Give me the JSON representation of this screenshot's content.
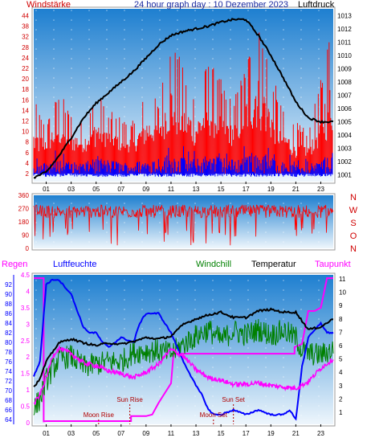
{
  "header": {
    "title": "24 hour graph day : 10 Dezember 2023",
    "left_label": "Windstärke",
    "right_label": "Luftdruck"
  },
  "colors": {
    "wind": "#ff0000",
    "gust": "#0000ff",
    "pressure": "#000000",
    "direction": "#ff0000",
    "rain": "#ff00ff",
    "humidity": "#0000ff",
    "windchill": "#008000",
    "temperature": "#000000",
    "dewpoint": "#ff00ff",
    "sky_top": "#1e7fd0",
    "sky_bottom": "#eef6fc"
  },
  "chart_data": [
    {
      "type": "line",
      "panel": "wind-pressure",
      "x_ticks": [
        "01",
        "03",
        "05",
        "07",
        "09",
        "11",
        "13",
        "15",
        "17",
        "19",
        "21",
        "23"
      ],
      "left_axis": {
        "label": "Windstärke",
        "ticks": [
          2,
          4,
          6,
          8,
          10,
          12,
          14,
          16,
          18,
          20,
          22,
          24,
          28,
          32,
          38,
          44
        ],
        "ylim": [
          2,
          44
        ]
      },
      "right_axis": {
        "label": "Luftdruck",
        "ticks": [
          1001,
          1002,
          1003,
          1004,
          1005,
          1006,
          1007,
          1008,
          1009,
          1010,
          1011,
          1012,
          1013
        ],
        "ylim": [
          1000.5,
          1013.5
        ]
      },
      "series": [
        {
          "name": "Luftdruck",
          "axis": "right",
          "x": [
            0,
            1,
            2,
            3,
            4,
            5,
            6,
            7,
            8,
            9,
            10,
            11,
            12,
            13,
            14,
            15,
            16,
            17,
            18,
            19,
            20,
            21,
            22,
            23,
            24
          ],
          "y": [
            1000.8,
            1001.2,
            1002.4,
            1003.8,
            1005.3,
            1006.4,
            1007.2,
            1008.0,
            1008.8,
            1009.8,
            1010.8,
            1011.5,
            1011.8,
            1012.0,
            1012.2,
            1012.5,
            1012.7,
            1012.7,
            1011.5,
            1010.0,
            1008.3,
            1006.5,
            1005.3,
            1005.0,
            1005.0
          ]
        }
      ],
      "wind_level_by_hour": [
        5,
        6,
        7,
        6,
        6,
        7,
        7,
        6,
        6,
        7,
        8,
        9,
        8,
        7,
        9,
        8,
        7,
        9,
        10,
        8,
        6,
        5,
        5,
        7,
        9
      ],
      "gust_level_by_hour": [
        16,
        12,
        18,
        14,
        12,
        18,
        14,
        13,
        12,
        18,
        16,
        30,
        22,
        18,
        24,
        20,
        16,
        24,
        38,
        22,
        14,
        12,
        10,
        20,
        40
      ]
    },
    {
      "type": "line",
      "panel": "wind-direction",
      "y_ticks": [
        0,
        90,
        180,
        270,
        360
      ],
      "direction_labels": [
        "N",
        "W",
        "S",
        "O",
        "N"
      ],
      "ylim": [
        0,
        360
      ],
      "typical_direction": 250
    },
    {
      "type": "line",
      "panel": "temperature-humidity-rain",
      "x_ticks": [
        "01",
        "03",
        "05",
        "07",
        "09",
        "11",
        "13",
        "15",
        "17",
        "19",
        "21",
        "23"
      ],
      "legend": [
        "Regen",
        "Luftfeuchte",
        "Windchill",
        "Temperatur",
        "Taupunkt"
      ],
      "rain_axis": {
        "ticks": [
          "0",
          "0.5",
          "1",
          "1.5",
          "2",
          "2.5",
          "3",
          "3.5",
          "4",
          "4.5"
        ],
        "ylim": [
          0,
          4.5
        ]
      },
      "humidity_axis": {
        "ticks": [
          64,
          66,
          68,
          70,
          72,
          74,
          76,
          78,
          80,
          82,
          84,
          86,
          88,
          90,
          92
        ],
        "ylim": [
          63,
          94
        ]
      },
      "temperature_axis": {
        "ticks": [
          1,
          2,
          3,
          4,
          5,
          6,
          7,
          8,
          9,
          10,
          11
        ],
        "ylim": [
          0.1,
          11.3
        ]
      },
      "series": [
        {
          "name": "Luftfeuchte",
          "axis": "humidity",
          "x": [
            0,
            0.5,
            1,
            1.5,
            2,
            3,
            4,
            4.5,
            5,
            5.5,
            6,
            7,
            8,
            8.5,
            9,
            10,
            11,
            12,
            13,
            13.5,
            14,
            14.5,
            15,
            16,
            17,
            18,
            19,
            20,
            20.5,
            21,
            21.5,
            22,
            23,
            23.5,
            24
          ],
          "y": [
            73,
            76,
            92,
            93,
            93,
            90,
            83,
            82,
            82,
            80,
            79,
            81,
            80,
            84,
            86,
            86,
            82,
            76,
            71,
            69,
            66,
            65,
            65,
            66,
            65,
            66,
            65,
            65,
            66,
            64,
            75,
            81,
            84,
            82,
            82
          ]
        },
        {
          "name": "Temperatur",
          "axis": "temperature",
          "x": [
            0,
            0.5,
            1,
            2,
            3,
            4,
            5,
            6,
            7,
            8,
            9,
            10,
            11,
            12,
            13,
            14,
            15,
            16,
            17,
            18,
            19,
            20,
            21,
            22,
            23,
            24
          ],
          "y": [
            2.9,
            3.5,
            4.8,
            6.2,
            6.5,
            6.2,
            6.0,
            6.2,
            6.1,
            6.3,
            6.6,
            6.5,
            6.7,
            7.6,
            8.0,
            8.3,
            8.5,
            8.1,
            8.1,
            8.6,
            8.7,
            8.5,
            8.5,
            7.2,
            7.4,
            8.0
          ]
        },
        {
          "name": "Windchill",
          "axis": "temperature",
          "x": [
            0,
            0.5,
            1,
            2,
            3,
            4,
            5,
            6,
            7,
            8,
            9,
            10,
            11,
            12,
            13,
            14,
            15,
            16,
            17,
            18,
            19,
            20,
            21,
            21.5,
            22,
            23,
            24
          ],
          "y": [
            1.2,
            2.0,
            3.4,
            5.0,
            5.2,
            4.4,
            4.6,
            4.8,
            4.8,
            5.5,
            5.6,
            5.6,
            5.4,
            6.1,
            6.7,
            7.2,
            6.4,
            7.1,
            6.8,
            7.2,
            6.8,
            7.1,
            6.6,
            5.6,
            5.4,
            5.3,
            5.7
          ]
        },
        {
          "name": "Taupunkt",
          "axis": "temperature",
          "x": [
            0,
            0.5,
            1,
            1.5,
            2,
            3,
            4,
            5,
            6,
            7,
            8,
            9,
            10,
            10.5,
            11,
            12,
            13,
            14,
            15,
            16,
            17,
            18,
            19,
            20,
            21,
            22,
            23,
            24
          ],
          "y": [
            1.6,
            2.3,
            3.6,
            5.2,
            5.8,
            5.4,
            4.7,
            4.5,
            4.1,
            3.9,
            3.6,
            4.0,
            4.6,
            5.2,
            5.7,
            5.2,
            4.2,
            3.6,
            3.4,
            3.1,
            3.1,
            3.2,
            3.0,
            2.9,
            2.8,
            3.3,
            4.3,
            5.0
          ]
        },
        {
          "name": "Regen",
          "axis": "rain",
          "x": [
            0,
            0.8,
            0.8,
            1,
            1.5,
            2,
            3,
            4,
            5,
            6,
            7,
            7.8,
            7.8,
            9,
            9.5,
            10,
            11,
            11.2,
            12,
            13,
            14,
            15,
            16,
            17,
            18,
            19,
            20,
            20.9,
            20.9,
            21.5,
            22,
            22.5,
            23,
            23.5,
            24
          ],
          "y": [
            4.4,
            4.4,
            0.04,
            0.05,
            0.05,
            0.05,
            0.05,
            0.05,
            0.05,
            0.05,
            0.05,
            0.05,
            0.2,
            0.2,
            0.25,
            0.6,
            1.2,
            2.1,
            2.1,
            2.1,
            2.1,
            2.1,
            2.1,
            2.1,
            2.1,
            2.1,
            2.1,
            2.1,
            2.3,
            2.4,
            3.4,
            3.4,
            3.5,
            4.4,
            4.4
          ]
        }
      ],
      "events": [
        {
          "label": "Moon Rise",
          "hour": 5.2
        },
        {
          "label": "Sun Rise",
          "hour": 7.7
        },
        {
          "label": "Moon Set",
          "hour": 14.4
        },
        {
          "label": "Sun Set",
          "hour": 16.0
        }
      ]
    }
  ]
}
